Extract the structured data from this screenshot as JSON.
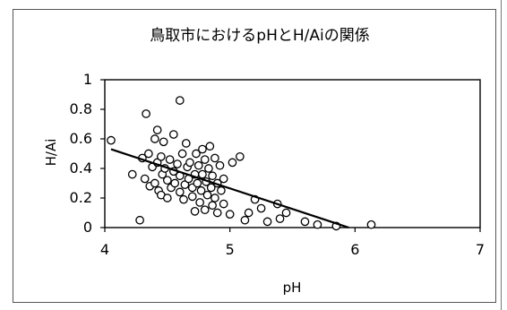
{
  "chart_data": {
    "type": "scatter",
    "title": "鳥取市におけるpHとH/Aiの関係",
    "xlabel": "pH",
    "ylabel": "H/Ai",
    "xlim": [
      4,
      7
    ],
    "ylim": [
      0,
      1
    ],
    "xticks": [
      "4",
      "5",
      "6",
      "7"
    ],
    "yticks": [
      "0",
      "0.2",
      "0.4",
      "0.6",
      "0.8",
      "1"
    ],
    "grid": false,
    "legend": "none",
    "colors": {
      "marker_edge": "#000000",
      "marker_fill": "#ffffff",
      "trendline": "#000000"
    },
    "series": [
      {
        "marker": "open-circle",
        "points": [
          [
            4.05,
            0.59
          ],
          [
            4.22,
            0.36
          ],
          [
            4.28,
            0.05
          ],
          [
            4.3,
            0.47
          ],
          [
            4.32,
            0.33
          ],
          [
            4.33,
            0.77
          ],
          [
            4.35,
            0.5
          ],
          [
            4.36,
            0.28
          ],
          [
            4.38,
            0.41
          ],
          [
            4.4,
            0.6
          ],
          [
            4.4,
            0.3
          ],
          [
            4.42,
            0.66
          ],
          [
            4.42,
            0.44
          ],
          [
            4.43,
            0.25
          ],
          [
            4.45,
            0.48
          ],
          [
            4.45,
            0.22
          ],
          [
            4.46,
            0.36
          ],
          [
            4.47,
            0.58
          ],
          [
            4.48,
            0.4
          ],
          [
            4.5,
            0.32
          ],
          [
            4.5,
            0.2
          ],
          [
            4.52,
            0.46
          ],
          [
            4.53,
            0.27
          ],
          [
            4.55,
            0.38
          ],
          [
            4.55,
            0.63
          ],
          [
            4.56,
            0.3
          ],
          [
            4.58,
            0.43
          ],
          [
            4.6,
            0.86
          ],
          [
            4.6,
            0.24
          ],
          [
            4.6,
            0.35
          ],
          [
            4.62,
            0.5
          ],
          [
            4.63,
            0.19
          ],
          [
            4.64,
            0.29
          ],
          [
            4.65,
            0.57
          ],
          [
            4.66,
            0.41
          ],
          [
            4.67,
            0.33
          ],
          [
            4.68,
            0.44
          ],
          [
            4.7,
            0.27
          ],
          [
            4.7,
            0.21
          ],
          [
            4.72,
            0.36
          ],
          [
            4.72,
            0.11
          ],
          [
            4.73,
            0.5
          ],
          [
            4.74,
            0.3
          ],
          [
            4.75,
            0.42
          ],
          [
            4.76,
            0.17
          ],
          [
            4.77,
            0.25
          ],
          [
            4.78,
            0.53
          ],
          [
            4.78,
            0.36
          ],
          [
            4.8,
            0.46
          ],
          [
            4.8,
            0.12
          ],
          [
            4.81,
            0.31
          ],
          [
            4.82,
            0.22
          ],
          [
            4.83,
            0.4
          ],
          [
            4.84,
            0.55
          ],
          [
            4.85,
            0.27
          ],
          [
            4.86,
            0.15
          ],
          [
            4.86,
            0.35
          ],
          [
            4.88,
            0.47
          ],
          [
            4.88,
            0.2
          ],
          [
            4.9,
            0.3
          ],
          [
            4.9,
            0.1
          ],
          [
            4.92,
            0.42
          ],
          [
            4.93,
            0.25
          ],
          [
            4.95,
            0.33
          ],
          [
            4.95,
            0.16
          ],
          [
            5.0,
            0.09
          ],
          [
            5.02,
            0.44
          ],
          [
            5.08,
            0.48
          ],
          [
            5.12,
            0.05
          ],
          [
            5.15,
            0.1
          ],
          [
            5.2,
            0.19
          ],
          [
            5.25,
            0.13
          ],
          [
            5.3,
            0.04
          ],
          [
            5.38,
            0.16
          ],
          [
            5.4,
            0.06
          ],
          [
            5.45,
            0.1
          ],
          [
            5.6,
            0.04
          ],
          [
            5.7,
            0.02
          ],
          [
            5.85,
            0.01
          ],
          [
            6.13,
            0.02
          ]
        ]
      }
    ],
    "trendline": {
      "type": "linear",
      "x_start": 4.05,
      "y_start": 0.53,
      "x_end": 5.95,
      "y_end": 0.0
    }
  }
}
